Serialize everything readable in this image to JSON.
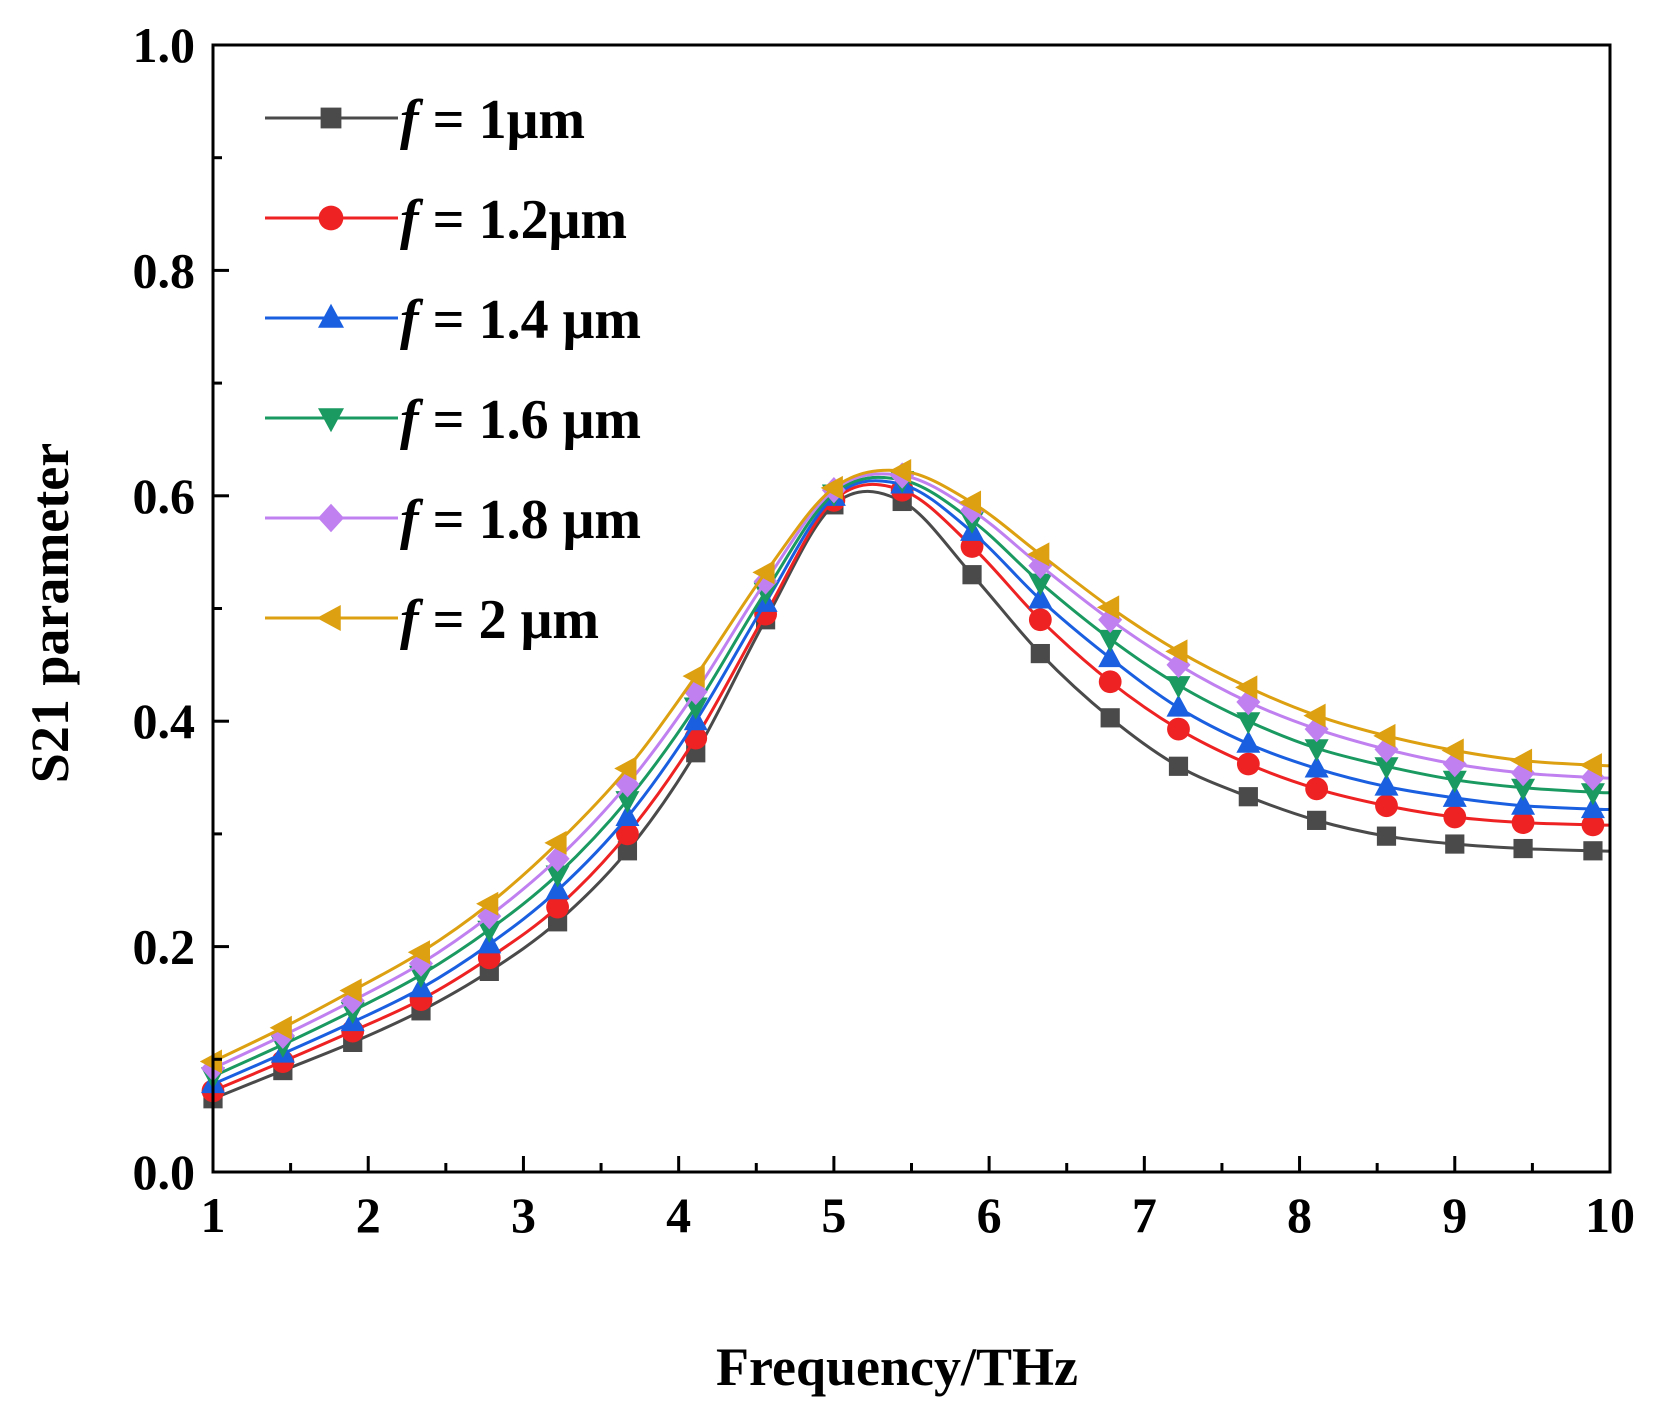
{
  "chart_data": {
    "type": "line",
    "xlabel": "Frequency/THz",
    "ylabel": "S21 parameter",
    "xlim": [
      1,
      10
    ],
    "ylim": [
      0.0,
      1.0
    ],
    "x_ticks": [
      "1",
      "2",
      "3",
      "4",
      "5",
      "6",
      "7",
      "8",
      "9",
      "10"
    ],
    "y_ticks": [
      "0.0",
      "0.2",
      "0.4",
      "0.6",
      "0.8",
      "1.0"
    ],
    "grid": false,
    "legend_position": "top-left",
    "x": [
      1.0,
      1.45,
      1.9,
      2.34,
      2.78,
      3.22,
      3.67,
      4.11,
      4.56,
      5.0,
      5.44,
      5.89,
      6.33,
      6.78,
      7.22,
      7.67,
      8.11,
      8.56,
      9.0,
      9.44,
      9.89
    ],
    "series": [
      {
        "legend_prefix": "f",
        "legend_suffix": " = 1μm",
        "color": "#4a4a4a",
        "marker": "square",
        "values": [
          0.065,
          0.09,
          0.115,
          0.143,
          0.178,
          0.222,
          0.285,
          0.372,
          0.49,
          0.592,
          0.595,
          0.53,
          0.46,
          0.403,
          0.36,
          0.333,
          0.312,
          0.298,
          0.291,
          0.287,
          0.285
        ]
      },
      {
        "legend_prefix": "f",
        "legend_suffix": " = 1.2μm",
        "color": "#ee2222",
        "marker": "circle",
        "values": [
          0.072,
          0.098,
          0.125,
          0.153,
          0.19,
          0.235,
          0.3,
          0.385,
          0.495,
          0.596,
          0.605,
          0.555,
          0.49,
          0.435,
          0.393,
          0.362,
          0.34,
          0.325,
          0.315,
          0.31,
          0.308
        ]
      },
      {
        "legend_prefix": "f",
        "legend_suffix": " = 1.4 μm",
        "color": "#1a5fe0",
        "marker": "triangle-up",
        "values": [
          0.078,
          0.105,
          0.133,
          0.163,
          0.202,
          0.25,
          0.315,
          0.4,
          0.505,
          0.599,
          0.61,
          0.568,
          0.508,
          0.456,
          0.412,
          0.38,
          0.358,
          0.342,
          0.332,
          0.325,
          0.322
        ]
      },
      {
        "legend_prefix": "f",
        "legend_suffix": " = 1.6 μm",
        "color": "#1a9960",
        "marker": "triangle-down",
        "values": [
          0.085,
          0.113,
          0.143,
          0.175,
          0.215,
          0.264,
          0.33,
          0.413,
          0.515,
          0.602,
          0.614,
          0.578,
          0.523,
          0.473,
          0.432,
          0.4,
          0.376,
          0.36,
          0.348,
          0.341,
          0.337
        ]
      },
      {
        "legend_prefix": "f",
        "legend_suffix": " = 1.8 μm",
        "color": "#c080f0",
        "marker": "diamond",
        "values": [
          0.092,
          0.121,
          0.152,
          0.185,
          0.227,
          0.278,
          0.344,
          0.426,
          0.524,
          0.605,
          0.618,
          0.587,
          0.538,
          0.49,
          0.45,
          0.417,
          0.393,
          0.375,
          0.362,
          0.354,
          0.35
        ]
      },
      {
        "legend_prefix": "f",
        "legend_suffix": " = 2 μm",
        "color": "#dca010",
        "marker": "triangle-left",
        "values": [
          0.098,
          0.128,
          0.161,
          0.195,
          0.238,
          0.292,
          0.358,
          0.44,
          0.532,
          0.607,
          0.622,
          0.594,
          0.548,
          0.501,
          0.462,
          0.43,
          0.405,
          0.387,
          0.374,
          0.365,
          0.361
        ]
      }
    ]
  }
}
